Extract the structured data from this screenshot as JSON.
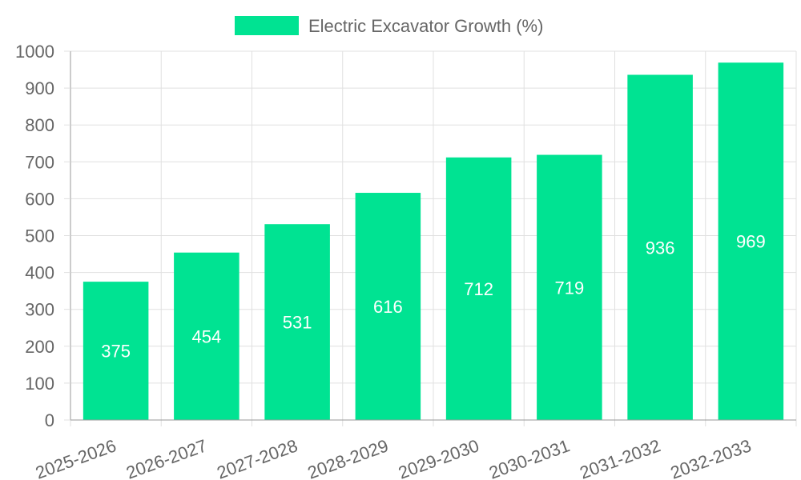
{
  "chart_data": {
    "type": "bar",
    "categories": [
      "2025-2026",
      "2026-2027",
      "2027-2028",
      "2028-2029",
      "2029-2030",
      "2030-2031",
      "2031-2032",
      "2032-2033"
    ],
    "series": [
      {
        "name": "Electric Excavator Growth (%)",
        "values": [
          375,
          454,
          531,
          616,
          712,
          719,
          936,
          969
        ],
        "color": "#00e392"
      }
    ],
    "yticks": [
      "0",
      "100",
      "200",
      "300",
      "400",
      "500",
      "600",
      "700",
      "800",
      "900",
      "1000"
    ],
    "ylim": [
      0,
      1000
    ],
    "grid": true,
    "legend_position": "top-center",
    "data_labels": [
      "375",
      "454",
      "531",
      "616",
      "712",
      "719",
      "936",
      "969"
    ],
    "colors": {
      "grid": "#e0e0e0",
      "axis": "#999999",
      "text": "#666666",
      "label": "#ffffff"
    }
  }
}
